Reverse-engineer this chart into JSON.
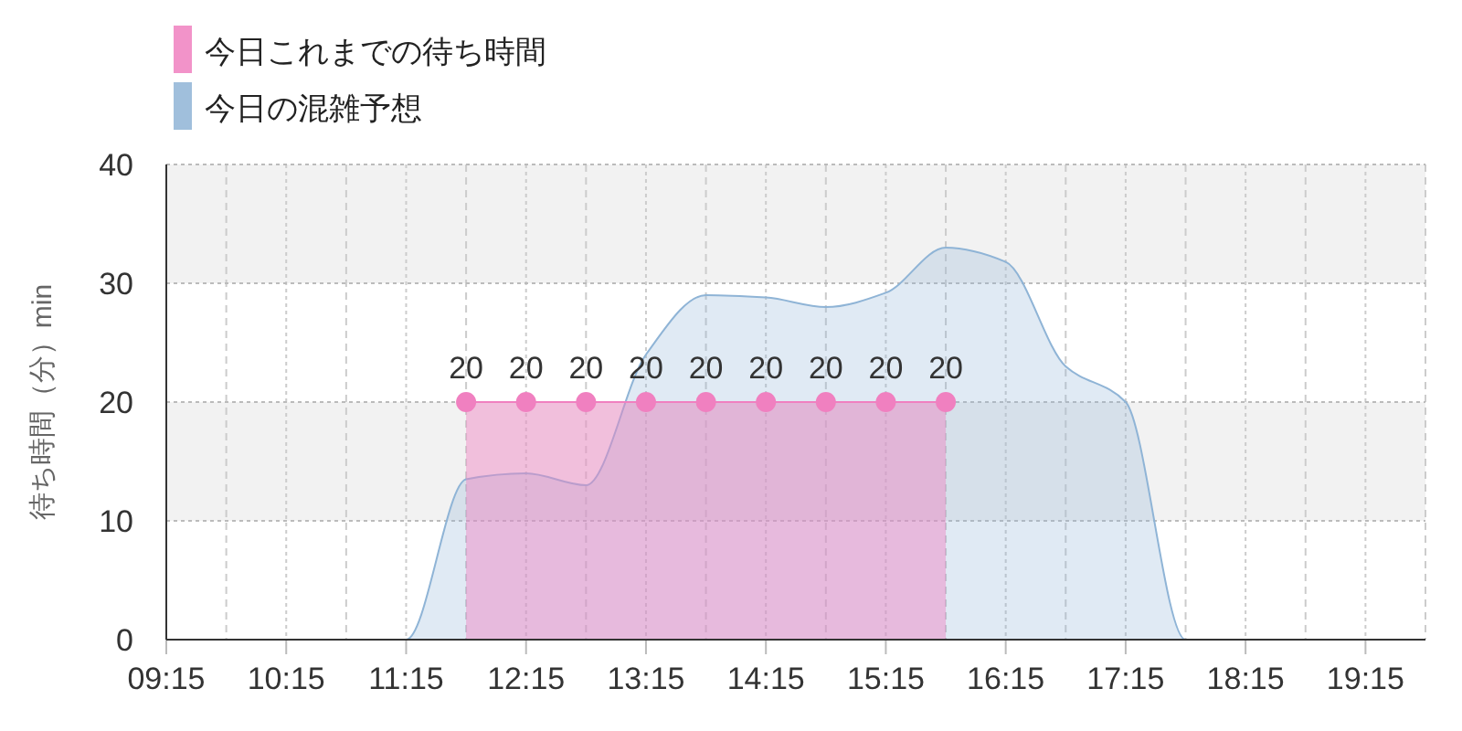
{
  "chart_data": {
    "type": "area",
    "ylabel": "待ち時間（分）min",
    "legend": "top left",
    "grid": true,
    "xlim": [
      9.25,
      19.75
    ],
    "ylim": [
      0,
      40
    ],
    "yticks": [
      0,
      10,
      20,
      30,
      40
    ],
    "xticks": [
      {
        "value": 9.25,
        "label": "09:15"
      },
      {
        "value": 9.75,
        "label": null
      },
      {
        "value": 10.25,
        "label": "10:15"
      },
      {
        "value": 10.75,
        "label": null
      },
      {
        "value": 11.25,
        "label": "11:15"
      },
      {
        "value": 11.75,
        "label": null
      },
      {
        "value": 12.25,
        "label": "12:15"
      },
      {
        "value": 12.75,
        "label": null
      },
      {
        "value": 13.25,
        "label": "13:15"
      },
      {
        "value": 13.75,
        "label": null
      },
      {
        "value": 14.25,
        "label": "14:15"
      },
      {
        "value": 14.75,
        "label": null
      },
      {
        "value": 15.25,
        "label": "15:15"
      },
      {
        "value": 15.75,
        "label": null
      },
      {
        "value": 16.25,
        "label": "16:15"
      },
      {
        "value": 16.75,
        "label": null
      },
      {
        "value": 17.25,
        "label": "17:15"
      },
      {
        "value": 17.75,
        "label": null
      },
      {
        "value": 18.25,
        "label": "18:15"
      },
      {
        "value": 18.75,
        "label": null
      },
      {
        "value": 19.25,
        "label": "19:15"
      },
      {
        "value": 19.75,
        "label": null
      }
    ],
    "bands": [
      {
        "axis": "y",
        "from": 10,
        "to": 20,
        "color": "#f2f2f2"
      },
      {
        "axis": "y",
        "from": 30,
        "to": 40,
        "color": "#f2f2f2"
      }
    ],
    "series": [
      {
        "name": "今日の混雑予想",
        "color": "#8fb4d6",
        "marker": "none",
        "x": [
          9.25,
          9.75,
          10.25,
          10.75,
          11.25,
          11.75,
          12.25,
          12.75,
          13.25,
          13.75,
          14.25,
          14.75,
          15.25,
          15.75,
          16.25,
          16.75,
          17.25,
          17.75,
          18.25,
          18.75,
          19.25,
          19.75
        ],
        "values": [
          0,
          0,
          0,
          0,
          0,
          13.5,
          14,
          13,
          24,
          29,
          28.8,
          28,
          29.2,
          33,
          31.8,
          23,
          20,
          0,
          0,
          0,
          0,
          0
        ]
      },
      {
        "name": "今日これまでの待ち時間",
        "color": "#f080c0",
        "marker": "circle",
        "x": [
          11.75,
          12.25,
          12.75,
          13.25,
          13.75,
          14.25,
          14.75,
          15.25,
          15.75
        ],
        "values": [
          20,
          20,
          20,
          20,
          20,
          20,
          20,
          20,
          20
        ],
        "value_labels": [
          "20",
          "20",
          "20",
          "20",
          "20",
          "20",
          "20",
          "20",
          "20"
        ]
      }
    ]
  }
}
